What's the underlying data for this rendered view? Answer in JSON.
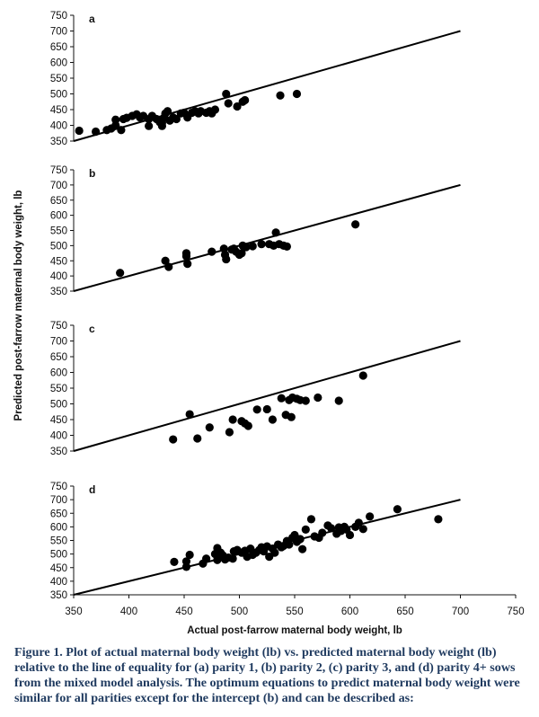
{
  "chart_data": [
    {
      "type": "scatter",
      "panel_label": "a",
      "xlim": [
        350,
        750
      ],
      "ylim": [
        350,
        750
      ],
      "yticks": [
        350,
        400,
        450,
        500,
        550,
        600,
        650,
        700,
        750
      ],
      "line_of_equality": {
        "x": [
          350,
          700
        ],
        "y": [
          350,
          700
        ]
      },
      "points": [
        [
          355,
          383
        ],
        [
          370,
          380
        ],
        [
          380,
          385
        ],
        [
          384,
          390
        ],
        [
          388,
          400
        ],
        [
          388,
          418
        ],
        [
          395,
          420
        ],
        [
          393,
          385
        ],
        [
          398,
          424
        ],
        [
          403,
          430
        ],
        [
          407,
          435
        ],
        [
          410,
          425
        ],
        [
          413,
          430
        ],
        [
          418,
          420
        ],
        [
          418,
          398
        ],
        [
          421,
          430
        ],
        [
          425,
          420
        ],
        [
          428,
          410
        ],
        [
          430,
          408
        ],
        [
          430,
          398
        ],
        [
          432,
          425
        ],
        [
          433,
          438
        ],
        [
          435,
          445
        ],
        [
          437,
          415
        ],
        [
          440,
          425
        ],
        [
          443,
          420
        ],
        [
          447,
          438
        ],
        [
          450,
          440
        ],
        [
          453,
          425
        ],
        [
          457,
          440
        ],
        [
          460,
          445
        ],
        [
          463,
          438
        ],
        [
          465,
          445
        ],
        [
          470,
          440
        ],
        [
          473,
          445
        ],
        [
          475,
          438
        ],
        [
          478,
          450
        ],
        [
          488,
          500
        ],
        [
          490,
          470
        ],
        [
          498,
          460
        ],
        [
          503,
          475
        ],
        [
          505,
          480
        ],
        [
          537,
          495
        ],
        [
          552,
          500
        ]
      ]
    },
    {
      "type": "scatter",
      "panel_label": "b",
      "xlim": [
        350,
        750
      ],
      "ylim": [
        350,
        750
      ],
      "yticks": [
        350,
        400,
        450,
        500,
        550,
        600,
        650,
        700,
        750
      ],
      "line_of_equality": {
        "x": [
          350,
          700
        ],
        "y": [
          350,
          700
        ]
      },
      "points": [
        [
          392,
          410
        ],
        [
          433,
          450
        ],
        [
          436,
          430
        ],
        [
          452,
          475
        ],
        [
          452,
          465
        ],
        [
          453,
          440
        ],
        [
          475,
          480
        ],
        [
          486,
          490
        ],
        [
          487,
          470
        ],
        [
          488,
          455
        ],
        [
          493,
          487
        ],
        [
          495,
          490
        ],
        [
          497,
          480
        ],
        [
          500,
          470
        ],
        [
          502,
          475
        ],
        [
          503,
          500
        ],
        [
          506,
          495
        ],
        [
          512,
          498
        ],
        [
          520,
          505
        ],
        [
          527,
          505
        ],
        [
          531,
          500
        ],
        [
          533,
          543
        ],
        [
          536,
          505
        ],
        [
          540,
          500
        ],
        [
          543,
          497
        ],
        [
          605,
          570
        ]
      ]
    },
    {
      "type": "scatter",
      "panel_label": "c",
      "xlim": [
        350,
        750
      ],
      "ylim": [
        350,
        750
      ],
      "yticks": [
        350,
        400,
        450,
        500,
        550,
        600,
        650,
        700,
        750
      ],
      "line_of_equality": {
        "x": [
          350,
          700
        ],
        "y": [
          350,
          700
        ]
      },
      "points": [
        [
          440,
          387
        ],
        [
          455,
          467
        ],
        [
          462,
          390
        ],
        [
          473,
          425
        ],
        [
          491,
          410
        ],
        [
          494,
          450
        ],
        [
          502,
          445
        ],
        [
          505,
          438
        ],
        [
          508,
          430
        ],
        [
          516,
          482
        ],
        [
          525,
          483
        ],
        [
          530,
          450
        ],
        [
          538,
          518
        ],
        [
          542,
          465
        ],
        [
          545,
          512
        ],
        [
          547,
          458
        ],
        [
          548,
          520
        ],
        [
          552,
          516
        ],
        [
          555,
          512
        ],
        [
          560,
          510
        ],
        [
          571,
          520
        ],
        [
          590,
          510
        ],
        [
          612,
          590
        ]
      ]
    },
    {
      "type": "scatter",
      "panel_label": "d",
      "xlim": [
        350,
        750
      ],
      "ylim": [
        350,
        750
      ],
      "yticks": [
        350,
        400,
        450,
        500,
        550,
        600,
        650,
        700,
        750
      ],
      "line_of_equality": {
        "x": [
          350,
          700
        ],
        "y": [
          350,
          700
        ]
      },
      "points": [
        [
          441,
          471
        ],
        [
          452,
          473
        ],
        [
          452,
          453
        ],
        [
          455,
          497
        ],
        [
          467,
          465
        ],
        [
          470,
          483
        ],
        [
          478,
          500
        ],
        [
          480,
          522
        ],
        [
          480,
          478
        ],
        [
          483,
          505
        ],
        [
          485,
          495
        ],
        [
          487,
          480
        ],
        [
          490,
          487
        ],
        [
          494,
          483
        ],
        [
          495,
          510
        ],
        [
          498,
          515
        ],
        [
          502,
          505
        ],
        [
          505,
          512
        ],
        [
          507,
          490
        ],
        [
          510,
          520
        ],
        [
          512,
          497
        ],
        [
          515,
          505
        ],
        [
          518,
          515
        ],
        [
          520,
          525
        ],
        [
          522,
          510
        ],
        [
          525,
          528
        ],
        [
          527,
          490
        ],
        [
          530,
          520
        ],
        [
          532,
          505
        ],
        [
          535,
          535
        ],
        [
          538,
          525
        ],
        [
          540,
          530
        ],
        [
          543,
          548
        ],
        [
          545,
          535
        ],
        [
          548,
          560
        ],
        [
          550,
          570
        ],
        [
          552,
          545
        ],
        [
          555,
          555
        ],
        [
          557,
          518
        ],
        [
          560,
          590
        ],
        [
          565,
          628
        ],
        [
          568,
          565
        ],
        [
          572,
          560
        ],
        [
          575,
          578
        ],
        [
          580,
          605
        ],
        [
          583,
          595
        ],
        [
          588,
          575
        ],
        [
          590,
          598
        ],
        [
          592,
          585
        ],
        [
          595,
          600
        ],
        [
          597,
          590
        ],
        [
          600,
          570
        ],
        [
          605,
          600
        ],
        [
          608,
          615
        ],
        [
          612,
          592
        ],
        [
          618,
          638
        ],
        [
          643,
          665
        ],
        [
          680,
          628
        ]
      ]
    }
  ],
  "axes": {
    "xticks": [
      350,
      400,
      450,
      500,
      550,
      600,
      650,
      700,
      750
    ],
    "xlabel": "Actual post-farrow maternal body weight, lb",
    "ylabel": "Predicted post-farrow maternal body weight, lb"
  },
  "caption": "Figure 1. Plot of actual maternal body weight (lb) vs. predicted maternal body weight (lb) relative to the line of equality for (a) parity 1, (b) parity 2, (c) parity 3, and (d) parity 4+ sows from the mixed model analysis. The optimum equations to predict maternal body weight were similar for all parities except for the intercept (b) and can be described as:"
}
